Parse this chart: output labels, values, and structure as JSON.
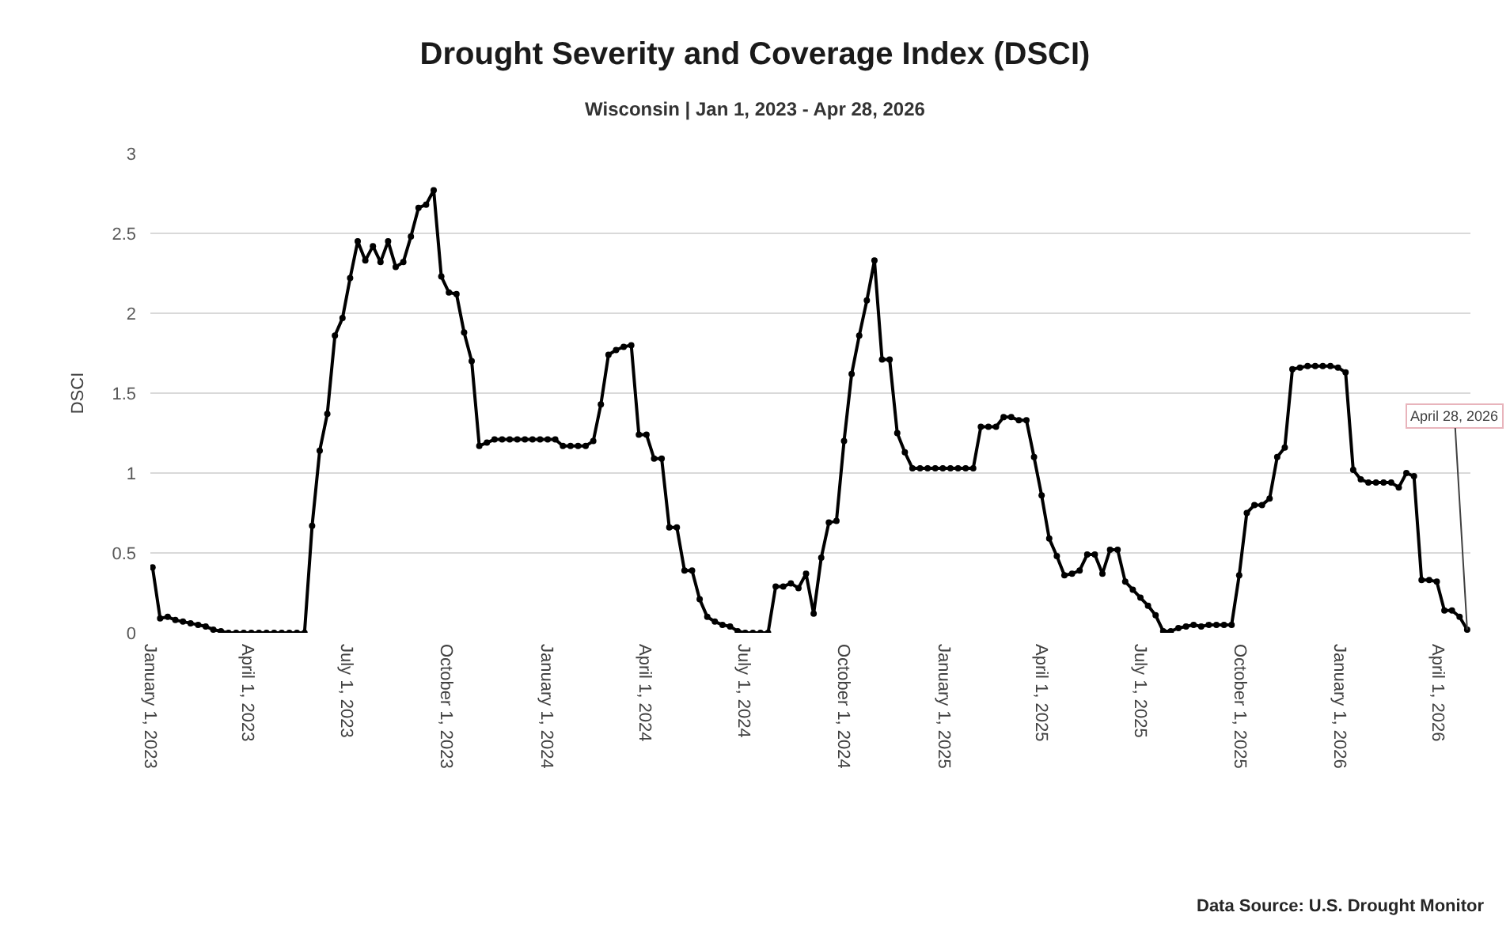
{
  "chart_data": {
    "type": "line",
    "title": "Drought Severity and Coverage Index (DSCI)",
    "subtitle": "Wisconsin | Jan 1, 2023 - Apr 28, 2026",
    "ylabel": "DSCI",
    "x": [
      "2023-01-03",
      "2023-01-10",
      "2023-01-17",
      "2023-01-24",
      "2023-01-31",
      "2023-02-07",
      "2023-02-14",
      "2023-02-21",
      "2023-02-28",
      "2023-03-07",
      "2023-03-14",
      "2023-03-21",
      "2023-03-28",
      "2023-04-04",
      "2023-04-11",
      "2023-04-18",
      "2023-04-25",
      "2023-05-02",
      "2023-05-09",
      "2023-05-16",
      "2023-05-23",
      "2023-05-30",
      "2023-06-06",
      "2023-06-13",
      "2023-06-20",
      "2023-06-27",
      "2023-07-04",
      "2023-07-11",
      "2023-07-18",
      "2023-07-25",
      "2023-08-01",
      "2023-08-08",
      "2023-08-15",
      "2023-08-22",
      "2023-08-29",
      "2023-09-05",
      "2023-09-12",
      "2023-09-19",
      "2023-09-26",
      "2023-10-03",
      "2023-10-10",
      "2023-10-17",
      "2023-10-24",
      "2023-10-31",
      "2023-11-07",
      "2023-11-14",
      "2023-11-21",
      "2023-11-28",
      "2023-12-05",
      "2023-12-12",
      "2023-12-19",
      "2023-12-26",
      "2024-01-02",
      "2024-01-09",
      "2024-01-16",
      "2024-01-23",
      "2024-01-30",
      "2024-02-06",
      "2024-02-13",
      "2024-02-20",
      "2024-02-27",
      "2024-03-05",
      "2024-03-12",
      "2024-03-19",
      "2024-03-26",
      "2024-04-02",
      "2024-04-09",
      "2024-04-16",
      "2024-04-23",
      "2024-04-30",
      "2024-05-07",
      "2024-05-14",
      "2024-05-21",
      "2024-05-28",
      "2024-06-04",
      "2024-06-11",
      "2024-06-18",
      "2024-06-25",
      "2024-07-02",
      "2024-07-09",
      "2024-07-16",
      "2024-07-23",
      "2024-07-30",
      "2024-08-06",
      "2024-08-13",
      "2024-08-20",
      "2024-08-27",
      "2024-09-03",
      "2024-09-10",
      "2024-09-17",
      "2024-09-24",
      "2024-10-01",
      "2024-10-08",
      "2024-10-15",
      "2024-10-22",
      "2024-10-29",
      "2024-11-05",
      "2024-11-12",
      "2024-11-19",
      "2024-11-26",
      "2024-12-03",
      "2024-12-10",
      "2024-12-17",
      "2024-12-24",
      "2024-12-31",
      "2025-01-07",
      "2025-01-14",
      "2025-01-21",
      "2025-01-28",
      "2025-02-04",
      "2025-02-11",
      "2025-02-18",
      "2025-02-25",
      "2025-03-04",
      "2025-03-11",
      "2025-03-18",
      "2025-03-25",
      "2025-04-01",
      "2025-04-08",
      "2025-04-15",
      "2025-04-22",
      "2025-04-29",
      "2025-05-06",
      "2025-05-13",
      "2025-05-20",
      "2025-05-27",
      "2025-06-03",
      "2025-06-10",
      "2025-06-17",
      "2025-06-24",
      "2025-07-01",
      "2025-07-08",
      "2025-07-15",
      "2025-07-22",
      "2025-07-29",
      "2025-08-05",
      "2025-08-12",
      "2025-08-19",
      "2025-08-26",
      "2025-09-02",
      "2025-09-09",
      "2025-09-16",
      "2025-09-23",
      "2025-09-30",
      "2025-10-07",
      "2025-10-14",
      "2025-10-21",
      "2025-10-28",
      "2025-11-04",
      "2025-11-11",
      "2025-11-18",
      "2025-11-25",
      "2025-12-02",
      "2025-12-09",
      "2025-12-16",
      "2025-12-23",
      "2025-12-30",
      "2026-01-06",
      "2026-01-13",
      "2026-01-20",
      "2026-01-27",
      "2026-02-03",
      "2026-02-10",
      "2026-02-17",
      "2026-02-24",
      "2026-03-03",
      "2026-03-10",
      "2026-03-17",
      "2026-03-24",
      "2026-03-31",
      "2026-04-07",
      "2026-04-14",
      "2026-04-21",
      "2026-04-28"
    ],
    "series": [
      {
        "color": "#000000",
        "values": [
          0.41,
          0.09,
          0.1,
          0.08,
          0.07,
          0.06,
          0.05,
          0.04,
          0.02,
          0.01,
          0,
          0,
          0,
          0,
          0,
          0,
          0,
          0,
          0,
          0,
          0,
          0.67,
          1.14,
          1.37,
          1.86,
          1.97,
          2.22,
          2.45,
          2.33,
          2.42,
          2.32,
          2.45,
          2.29,
          2.32,
          2.48,
          2.66,
          2.68,
          2.77,
          2.23,
          2.13,
          2.12,
          1.88,
          1.7,
          1.17,
          1.19,
          1.21,
          1.21,
          1.21,
          1.21,
          1.21,
          1.21,
          1.21,
          1.21,
          1.21,
          1.17,
          1.17,
          1.17,
          1.17,
          1.2,
          1.43,
          1.74,
          1.77,
          1.79,
          1.8,
          1.24,
          1.24,
          1.09,
          1.09,
          0.66,
          0.66,
          0.39,
          0.39,
          0.21,
          0.1,
          0.07,
          0.05,
          0.04,
          0.01,
          0,
          0,
          0,
          0,
          0.29,
          0.29,
          0.31,
          0.28,
          0.37,
          0.12,
          0.47,
          0.69,
          0.7,
          1.2,
          1.62,
          1.86,
          2.08,
          2.33,
          1.71,
          1.71,
          1.25,
          1.13,
          1.03,
          1.03,
          1.03,
          1.03,
          1.03,
          1.03,
          1.03,
          1.03,
          1.03,
          1.29,
          1.29,
          1.29,
          1.35,
          1.35,
          1.33,
          1.33,
          1.1,
          0.86,
          0.59,
          0.48,
          0.36,
          0.37,
          0.39,
          0.49,
          0.49,
          0.37,
          0.52,
          0.52,
          0.32,
          0.27,
          0.22,
          0.17,
          0.11,
          0.01,
          0.01,
          0.03,
          0.04,
          0.05,
          0.04,
          0.05,
          0.05,
          0.05,
          0.05,
          0.36,
          0.75,
          0.8,
          0.8,
          0.84,
          1.1,
          1.16,
          1.65,
          1.66,
          1.67,
          1.67,
          1.67,
          1.67,
          1.66,
          1.63,
          1.02,
          0.96,
          0.94,
          0.94,
          0.94,
          0.94,
          0.91,
          1.0,
          0.98,
          0.33,
          0.33,
          0.32,
          0.14,
          0.14,
          0.1,
          0.02
        ]
      }
    ],
    "xlim": [
      "2023-01-01",
      "2026-05-01"
    ],
    "xticks": [
      {
        "value": "2023-01-01",
        "label": "January 1, 2023"
      },
      {
        "value": "2023-04-01",
        "label": "April 1, 2023"
      },
      {
        "value": "2023-07-01",
        "label": "July 1, 2023"
      },
      {
        "value": "2023-10-01",
        "label": "October 1, 2023"
      },
      {
        "value": "2024-01-01",
        "label": "January 1, 2024"
      },
      {
        "value": "2024-04-01",
        "label": "April 1, 2024"
      },
      {
        "value": "2024-07-01",
        "label": "July 1, 2024"
      },
      {
        "value": "2024-10-01",
        "label": "October 1, 2024"
      },
      {
        "value": "2025-01-01",
        "label": "January 1, 2025"
      },
      {
        "value": "2025-04-01",
        "label": "April 1, 2025"
      },
      {
        "value": "2025-07-01",
        "label": "July 1, 2025"
      },
      {
        "value": "2025-10-01",
        "label": "October 1, 2025"
      },
      {
        "value": "2026-01-01",
        "label": "January 1, 2026"
      },
      {
        "value": "2026-04-01",
        "label": "April 1, 2026"
      }
    ],
    "ylim": [
      0,
      3
    ],
    "yticks": [
      0,
      0.5,
      1,
      1.5,
      2,
      2.5,
      3
    ],
    "grid": "y",
    "marker": "circle",
    "line_style": "solid",
    "annotations": [
      {
        "text": "April 28, 2026",
        "x": "2026-04-28",
        "y": 0.02
      },
      "Data Source: U.S. Drought Monitor"
    ]
  }
}
